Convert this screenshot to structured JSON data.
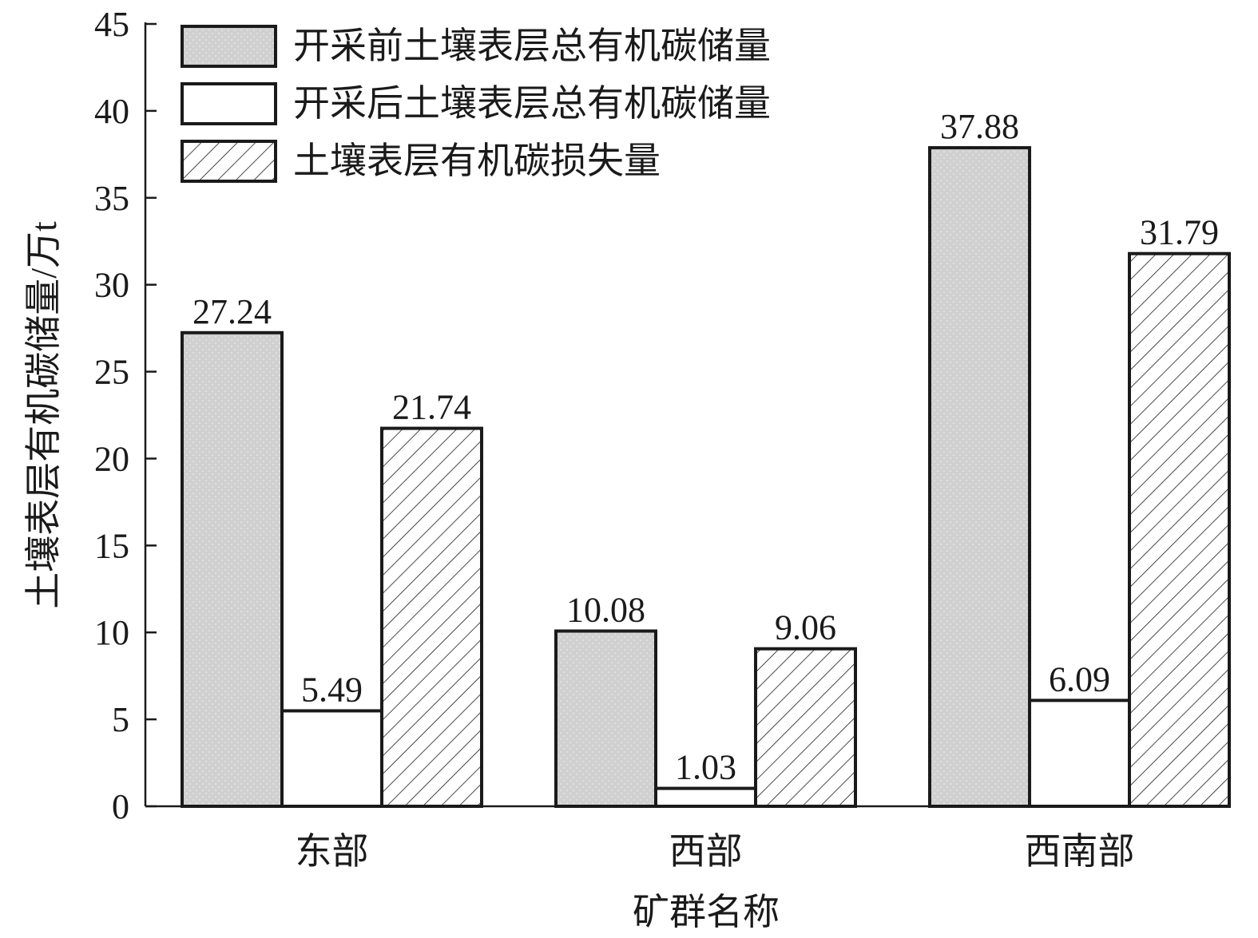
{
  "chart_data": {
    "type": "bar",
    "title": "",
    "xlabel": "矿群名称",
    "ylabel": "土壤表层有机碳储量/万t",
    "ylim": [
      0,
      45
    ],
    "yticks": [
      0,
      5,
      10,
      15,
      20,
      25,
      30,
      35,
      40,
      45
    ],
    "categories": [
      "东部",
      "西部",
      "西南部"
    ],
    "series": [
      {
        "name": "开采前土壤表层总有机碳储量",
        "values": [
          27.24,
          10.08,
          37.88
        ],
        "pattern": "dots",
        "color": "#d0d0d0"
      },
      {
        "name": "开采后土壤表层总有机碳储量",
        "values": [
          5.49,
          1.03,
          6.09
        ],
        "pattern": "none",
        "color": "#ffffff"
      },
      {
        "name": "土壤表层有机碳损失量",
        "values": [
          21.74,
          9.06,
          31.79
        ],
        "pattern": "hatch",
        "color": "#ffffff"
      }
    ],
    "data_labels": [
      [
        "27.24",
        "10.08",
        "37.88"
      ],
      [
        "5.49",
        "1.03",
        "6.09"
      ],
      [
        "21.74",
        "9.06",
        "31.79"
      ]
    ],
    "grid": false,
    "legend_position": "top-left",
    "colors": {
      "axis": "#1a1a1a",
      "bar_stroke": "#1a1a1a"
    }
  }
}
